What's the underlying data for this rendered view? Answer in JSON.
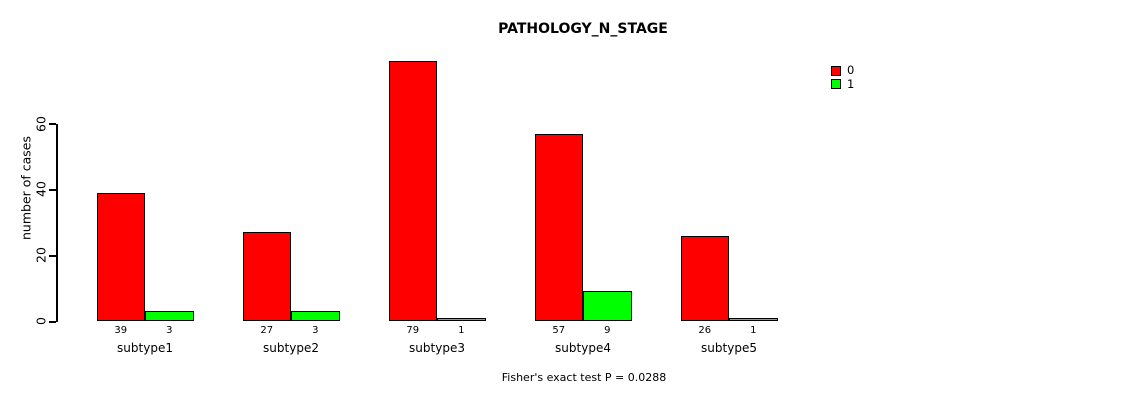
{
  "chart_data": {
    "type": "bar",
    "title": "PATHOLOGY_N_STAGE",
    "ylabel": "number of cases",
    "xlabel": "",
    "annotation": "Fisher's exact test P = 0.0288",
    "categories": [
      "subtype1",
      "subtype2",
      "subtype3",
      "subtype4",
      "subtype5"
    ],
    "series": [
      {
        "name": "0",
        "color": "#FF0000",
        "values": [
          39,
          27,
          79,
          57,
          26
        ]
      },
      {
        "name": "1",
        "color": "#00FF00",
        "values": [
          3,
          3,
          1,
          9,
          1
        ]
      }
    ],
    "value_labels": [
      [
        "39",
        "3"
      ],
      [
        "27",
        "3"
      ],
      [
        "79",
        "1"
      ],
      [
        "57",
        "9"
      ],
      [
        "26",
        "1"
      ]
    ],
    "yticks": [
      0,
      20,
      40,
      60
    ],
    "ylim": [
      0,
      79
    ],
    "grid": false,
    "legend_position": "top-right",
    "colors": {
      "background": "#FFFFFF",
      "axis": "#000000",
      "text": "#000000"
    }
  }
}
